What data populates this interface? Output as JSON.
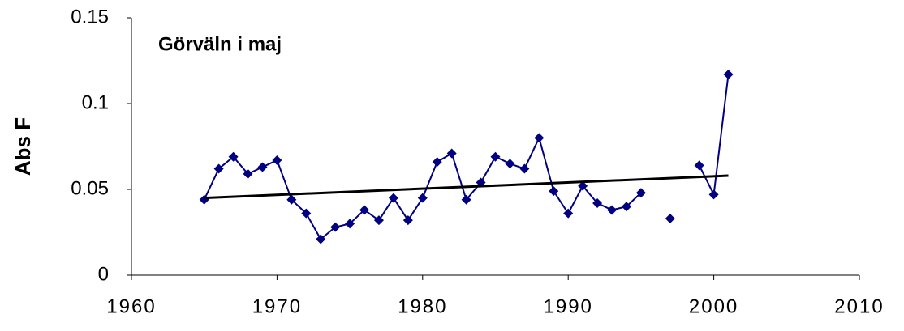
{
  "chart_data": {
    "type": "line",
    "title": "Görväln i maj",
    "y_label": "Abs F",
    "x": [
      1965,
      1966,
      1967,
      1968,
      1969,
      1970,
      1971,
      1972,
      1973,
      1974,
      1975,
      1976,
      1977,
      1978,
      1979,
      1980,
      1981,
      1982,
      1983,
      1984,
      1985,
      1986,
      1987,
      1988,
      1989,
      1990,
      1991,
      1992,
      1993,
      1994,
      1995,
      1996,
      1997,
      1998,
      1999,
      2000,
      2001
    ],
    "series": [
      {
        "color": "#000080",
        "values": [
          0.044,
          0.062,
          0.069,
          0.059,
          0.063,
          0.067,
          0.044,
          0.036,
          0.021,
          0.028,
          0.03,
          0.038,
          0.032,
          0.045,
          0.032,
          0.045,
          0.066,
          0.071,
          0.044,
          0.054,
          0.069,
          0.065,
          0.062,
          0.08,
          0.049,
          0.036,
          0.052,
          0.042,
          0.038,
          0.04,
          0.048,
          null,
          0.033,
          null,
          0.064,
          0.047,
          0.117
        ]
      }
    ],
    "trendline": {
      "color": "#000000",
      "x": [
        1965,
        2001
      ],
      "values": [
        0.045,
        0.058
      ]
    },
    "xlim": [
      1960,
      2010
    ],
    "xticks": [
      1960,
      1970,
      1980,
      1990,
      2000,
      2010
    ],
    "ylim": [
      0,
      0.15
    ],
    "yticks": [
      0,
      0.05,
      0.1,
      0.15
    ],
    "grid": false
  }
}
